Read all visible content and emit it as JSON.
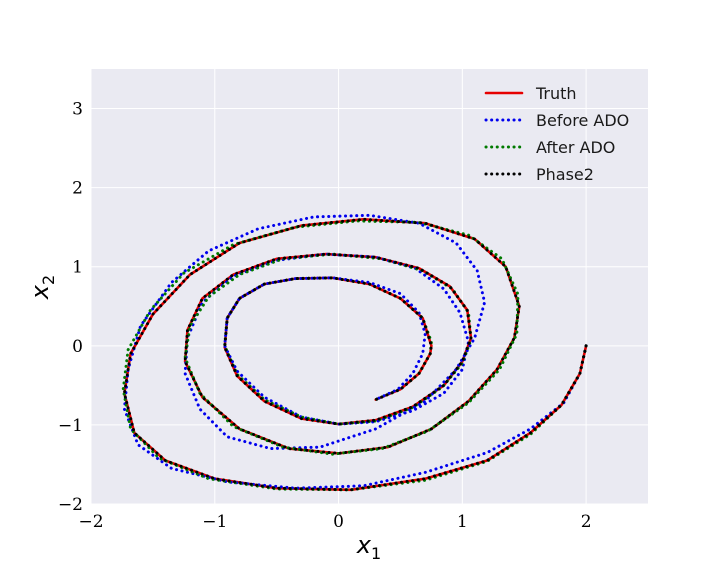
{
  "chart_data": {
    "type": "line",
    "xlabel": "x1",
    "ylabel": "x2",
    "xlim": [
      -2,
      2.5
    ],
    "ylim": [
      -2,
      3.5
    ],
    "xticks": [
      -2,
      -1,
      0,
      1,
      2
    ],
    "xtick_labels": [
      "−2",
      "−1",
      "0",
      "1",
      "2"
    ],
    "yticks": [
      -2,
      -1,
      0,
      1,
      2,
      3
    ],
    "ytick_labels": [
      "−2",
      "−1",
      "0",
      "1",
      "2",
      "3"
    ],
    "grid": true,
    "legend_position": "top-right",
    "series": [
      {
        "name": "Truth",
        "color": "#e60000",
        "style": "solid",
        "x": [
          2.0,
          1.95,
          1.8,
          1.55,
          1.2,
          0.7,
          0.1,
          -0.5,
          -1.0,
          -1.4,
          -1.65,
          -1.73,
          -1.68,
          -1.5,
          -1.2,
          -0.8,
          -0.3,
          0.2,
          0.7,
          1.1,
          1.35,
          1.46,
          1.42,
          1.28,
          1.05,
          0.75,
          0.4,
          0.0,
          -0.4,
          -0.8,
          -1.1,
          -1.24,
          -1.22,
          -1.1,
          -0.85,
          -0.5,
          -0.1,
          0.3,
          0.65,
          0.9,
          1.04,
          1.07,
          1.0,
          0.85,
          0.6,
          0.3,
          0.0,
          -0.3,
          -0.6,
          -0.82,
          -0.92,
          -0.9,
          -0.8,
          -0.6,
          -0.35,
          -0.05,
          0.25,
          0.5,
          0.68,
          0.75,
          0.74,
          0.65,
          0.5,
          0.3
        ],
        "y": [
          0.0,
          -0.35,
          -0.75,
          -1.1,
          -1.45,
          -1.68,
          -1.82,
          -1.8,
          -1.68,
          -1.45,
          -1.1,
          -0.6,
          -0.1,
          0.4,
          0.9,
          1.3,
          1.52,
          1.6,
          1.55,
          1.35,
          1.0,
          0.5,
          0.1,
          -0.3,
          -0.7,
          -1.05,
          -1.28,
          -1.36,
          -1.3,
          -1.05,
          -0.65,
          -0.2,
          0.2,
          0.6,
          0.9,
          1.1,
          1.16,
          1.12,
          0.98,
          0.75,
          0.45,
          0.1,
          -0.2,
          -0.5,
          -0.77,
          -0.94,
          -0.99,
          -0.92,
          -0.7,
          -0.38,
          -0.02,
          0.35,
          0.6,
          0.78,
          0.85,
          0.86,
          0.78,
          0.6,
          0.35,
          0.0,
          -0.1,
          -0.35,
          -0.55,
          -0.68
        ]
      },
      {
        "name": "Before ADO",
        "color": "#0000ee",
        "style": "dotted",
        "x": [
          2.0,
          1.95,
          1.82,
          1.55,
          1.2,
          0.7,
          0.2,
          -0.35,
          -0.9,
          -1.35,
          -1.62,
          -1.73,
          -1.7,
          -1.6,
          -1.35,
          -1.05,
          -0.65,
          -0.2,
          0.25,
          0.65,
          0.95,
          1.12,
          1.18,
          1.1,
          0.95,
          0.7,
          0.3,
          -0.15,
          -0.55,
          -0.9,
          -1.12,
          -1.24,
          -1.22,
          -1.1,
          -0.85,
          -0.5,
          -0.1,
          0.3,
          0.62,
          0.85,
          0.98,
          1.05,
          1.0,
          0.85,
          0.6,
          0.3,
          0.0,
          -0.3,
          -0.6,
          -0.82,
          -0.92,
          -0.9,
          -0.8,
          -0.6,
          -0.35,
          -0.05,
          0.25,
          0.5,
          0.65,
          0.7,
          0.68,
          0.6,
          0.48,
          0.3
        ],
        "y": [
          0.0,
          -0.35,
          -0.72,
          -1.05,
          -1.35,
          -1.6,
          -1.77,
          -1.8,
          -1.72,
          -1.55,
          -1.25,
          -0.8,
          -0.3,
          0.25,
          0.8,
          1.2,
          1.48,
          1.63,
          1.65,
          1.55,
          1.3,
          0.95,
          0.55,
          0.1,
          -0.3,
          -0.7,
          -1.05,
          -1.28,
          -1.3,
          -1.15,
          -0.8,
          -0.35,
          0.1,
          0.55,
          0.88,
          1.08,
          1.16,
          1.12,
          0.98,
          0.72,
          0.42,
          0.05,
          -0.3,
          -0.6,
          -0.82,
          -0.96,
          -0.99,
          -0.9,
          -0.65,
          -0.32,
          0.0,
          0.35,
          0.6,
          0.78,
          0.85,
          0.86,
          0.8,
          0.66,
          0.42,
          0.15,
          -0.1,
          -0.35,
          -0.55,
          -0.68
        ]
      },
      {
        "name": "After ADO",
        "color": "#007a00",
        "style": "dotted",
        "x": [
          2.0,
          1.95,
          1.8,
          1.55,
          1.2,
          0.7,
          0.1,
          -0.5,
          -1.05,
          -1.45,
          -1.68,
          -1.74,
          -1.7,
          -1.52,
          -1.25,
          -0.85,
          -0.35,
          0.15,
          0.65,
          1.05,
          1.32,
          1.45,
          1.44,
          1.3,
          1.05,
          0.72,
          0.35,
          -0.05,
          -0.45,
          -0.85,
          -1.12,
          -1.24,
          -1.2,
          -1.05,
          -0.8,
          -0.45,
          -0.05,
          0.35,
          0.68,
          0.92,
          1.05,
          1.07,
          1.0,
          0.84,
          0.6,
          0.3,
          0.0,
          -0.3,
          -0.6,
          -0.82,
          -0.92,
          -0.9,
          -0.8,
          -0.6,
          -0.35,
          -0.05,
          0.25,
          0.5,
          0.68,
          0.75,
          0.74,
          0.65,
          0.5,
          0.3
        ],
        "y": [
          0.0,
          -0.35,
          -0.75,
          -1.12,
          -1.46,
          -1.7,
          -1.82,
          -1.81,
          -1.68,
          -1.42,
          -1.05,
          -0.55,
          -0.05,
          0.45,
          0.92,
          1.28,
          1.5,
          1.58,
          1.56,
          1.4,
          1.1,
          0.65,
          0.15,
          -0.3,
          -0.72,
          -1.08,
          -1.3,
          -1.37,
          -1.28,
          -1.02,
          -0.6,
          -0.15,
          0.25,
          0.62,
          0.9,
          1.1,
          1.16,
          1.1,
          0.95,
          0.72,
          0.42,
          0.08,
          -0.22,
          -0.52,
          -0.78,
          -0.95,
          -0.99,
          -0.9,
          -0.68,
          -0.36,
          0.0,
          0.35,
          0.6,
          0.78,
          0.85,
          0.86,
          0.78,
          0.6,
          0.35,
          0.05,
          -0.1,
          -0.35,
          -0.55,
          -0.68
        ]
      },
      {
        "name": "Phase2",
        "color": "#000000",
        "style": "dotted",
        "x": [
          2.0,
          1.95,
          1.8,
          1.55,
          1.2,
          0.7,
          0.1,
          -0.5,
          -1.0,
          -1.4,
          -1.65,
          -1.73,
          -1.68,
          -1.5,
          -1.2,
          -0.8,
          -0.3,
          0.2,
          0.7,
          1.1,
          1.35,
          1.46,
          1.42,
          1.28,
          1.05,
          0.75,
          0.4,
          0.0,
          -0.4,
          -0.8,
          -1.1,
          -1.24,
          -1.22,
          -1.1,
          -0.85,
          -0.5,
          -0.1,
          0.3,
          0.65,
          0.9,
          1.04,
          1.07,
          1.0,
          0.85,
          0.6,
          0.3,
          0.0,
          -0.3,
          -0.6,
          -0.82,
          -0.92,
          -0.9,
          -0.8,
          -0.6,
          -0.35,
          -0.05,
          0.25,
          0.5,
          0.68,
          0.75,
          0.74,
          0.65,
          0.5,
          0.3
        ],
        "y": [
          0.0,
          -0.35,
          -0.75,
          -1.1,
          -1.45,
          -1.68,
          -1.82,
          -1.8,
          -1.68,
          -1.45,
          -1.1,
          -0.6,
          -0.1,
          0.4,
          0.9,
          1.3,
          1.52,
          1.6,
          1.55,
          1.35,
          1.0,
          0.5,
          0.1,
          -0.3,
          -0.7,
          -1.05,
          -1.28,
          -1.36,
          -1.3,
          -1.05,
          -0.65,
          -0.2,
          0.2,
          0.6,
          0.9,
          1.1,
          1.16,
          1.12,
          0.98,
          0.75,
          0.45,
          0.1,
          -0.2,
          -0.5,
          -0.77,
          -0.94,
          -0.99,
          -0.92,
          -0.7,
          -0.38,
          -0.02,
          0.35,
          0.6,
          0.78,
          0.85,
          0.86,
          0.78,
          0.6,
          0.35,
          0.0,
          -0.1,
          -0.35,
          -0.55,
          -0.68
        ]
      }
    ]
  }
}
